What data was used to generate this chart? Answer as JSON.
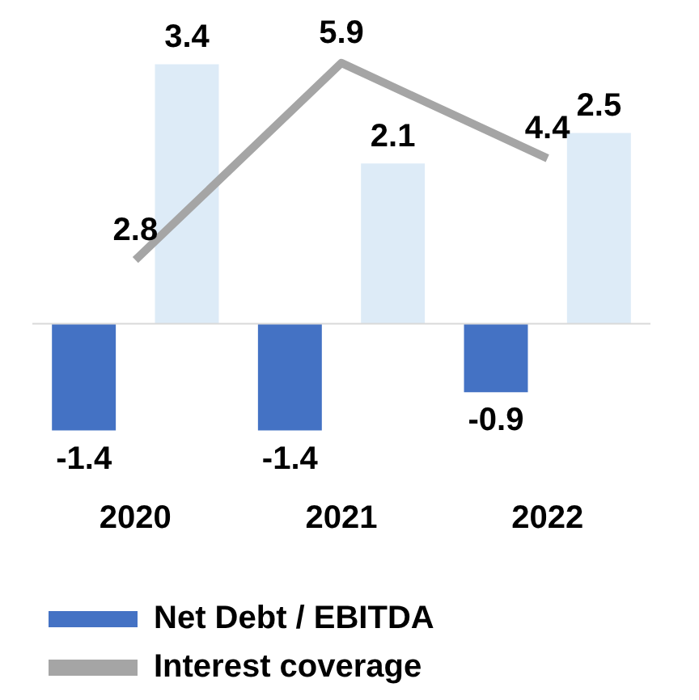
{
  "chart_data": {
    "type": "bar",
    "categories": [
      "2020",
      "2021",
      "2022"
    ],
    "data_labels": true,
    "legend": "bottom",
    "series": [
      {
        "name": "Net Debt / EBITDA",
        "color": "#4472c4",
        "values": [
          -1.4,
          -1.4,
          -0.9
        ]
      },
      {
        "color": "#ddebf7",
        "values": [
          3.4,
          2.1,
          2.5
        ]
      },
      {
        "name": "Interest coverage",
        "type": "line",
        "axis": "y2",
        "color": "#a5a5a5",
        "values": [
          2.8,
          5.9,
          4.4
        ]
      }
    ]
  }
}
